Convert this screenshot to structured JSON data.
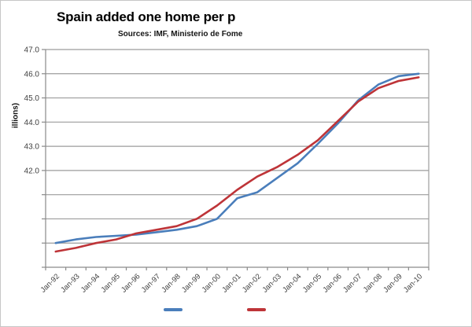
{
  "chart": {
    "title": "Spain added one home per p",
    "subtitle": "Sources: IMF, Ministerio de Fome",
    "y_axis_title": "illions)"
  },
  "chart_data": {
    "type": "line",
    "categories": [
      "Jan-92",
      "Jan-93",
      "Jan-94",
      "Jan-95",
      "Jan-96",
      "Jan-97",
      "Jan-98",
      "Jan-99",
      "Jan-00",
      "Jan-01",
      "Jan-02",
      "Jan-03",
      "Jan-04",
      "Jan-05",
      "Jan-06",
      "Jan-07",
      "Jan-08",
      "Jan-09",
      "Jan-10"
    ],
    "series": [
      {
        "name": "blue-series",
        "color": "#4A7EBB",
        "values": [
          39.0,
          39.15,
          39.25,
          39.3,
          39.35,
          39.45,
          39.55,
          39.7,
          40.0,
          40.85,
          41.1,
          41.7,
          42.3,
          43.1,
          43.95,
          44.9,
          45.55,
          45.9,
          46.0
        ]
      },
      {
        "name": "red-series",
        "color": "#BE3438",
        "values": [
          38.65,
          38.8,
          39.0,
          39.15,
          39.4,
          39.55,
          39.7,
          40.0,
          40.55,
          41.2,
          41.75,
          42.15,
          42.65,
          43.25,
          44.05,
          44.85,
          45.4,
          45.7,
          45.85
        ]
      }
    ],
    "ylim": [
      38,
      47
    ],
    "gridline_step": 1,
    "ytick_labels": [
      "47.0",
      "46.0",
      "45.0",
      "44.0",
      "43.0",
      "42.0"
    ],
    "xtick_rotation": -45,
    "grid": "horizontal",
    "legend_position": "bottom",
    "legend_text_visible": false,
    "title": "Spain added one home per p",
    "xlabel": "",
    "ylabel": "illions)"
  },
  "colors": {
    "gridline": "#9C9C9C",
    "axis": "#8A8A8A",
    "tick_label": "#3F3F3F",
    "frame_border": "#C6C6C6",
    "background": "#FFFFFF",
    "title_text": "#000000"
  }
}
